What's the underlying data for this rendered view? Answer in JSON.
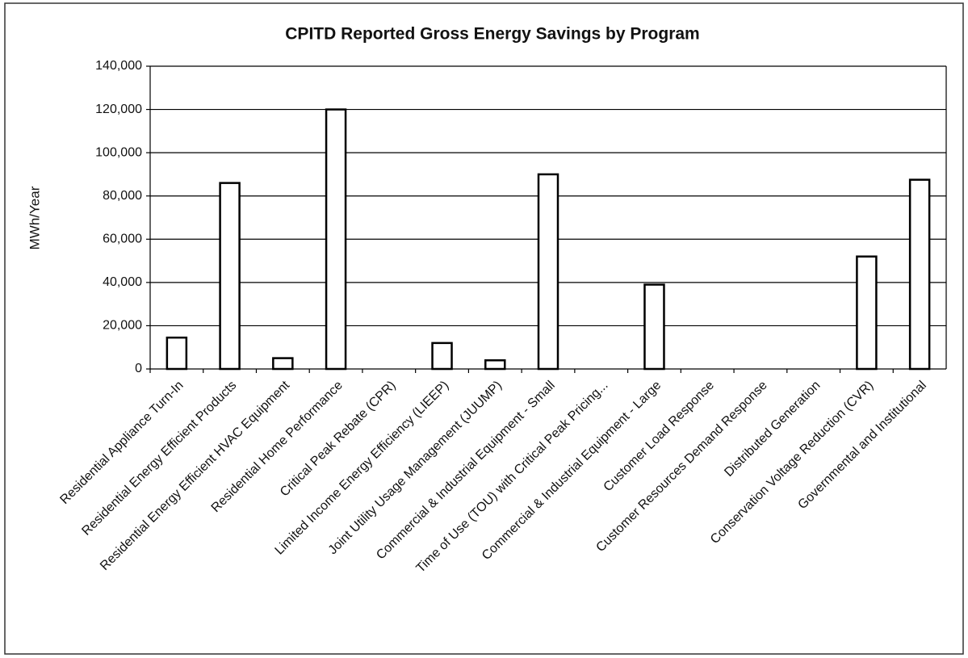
{
  "chart_data": {
    "type": "bar",
    "title": "CPITD Reported Gross Energy Savings by Program",
    "y_label": "MWh/Year",
    "categories": [
      "Residential Appliance Turn-In",
      "Residential Energy Efficient Products",
      "Residential Energy Efficient HVAC Equipment",
      "Residential Home Performance",
      "Critical Peak Rebate (CPR)",
      "Limited Income Energy Efficiency (LIEEP)",
      "Joint Utility Usage Management (JUUMP)",
      "Commercial & Industrial Equipment - Small",
      "Time of Use (TOU) with Critical Peak Pricing...",
      "Commercial & Industrial Equipment - Large",
      "Customer Load Response",
      "Customer Resources Demand Response",
      "Distributed Generation",
      "Conservation Voltage Reduction (CVR)",
      "Governmental and Institutional"
    ],
    "values": [
      14500,
      86000,
      5000,
      120000,
      0,
      12000,
      4000,
      90000,
      0,
      39000,
      0,
      0,
      0,
      52000,
      87500
    ],
    "color": "#ffffff",
    "ylim": [
      0,
      140000
    ],
    "yticks": [
      0,
      {
        "value": 20000,
        "label": "20,000"
      },
      {
        "value": 40000,
        "label": "40,000"
      },
      {
        "value": 60000,
        "label": "60,000"
      },
      {
        "value": 80000,
        "label": "80,000"
      },
      {
        "value": 100000,
        "label": "100,000"
      },
      {
        "value": 120000,
        "label": "120,000"
      },
      {
        "value": 140000,
        "label": "140,000"
      }
    ],
    "grid": true
  }
}
